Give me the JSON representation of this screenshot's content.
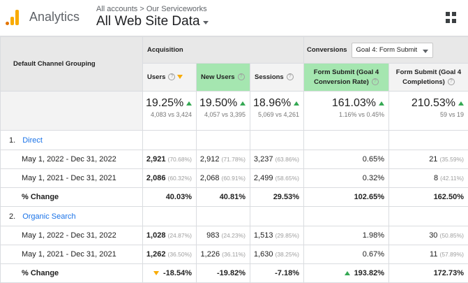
{
  "header": {
    "app_name": "Analytics",
    "breadcrumb_account": "All accounts",
    "breadcrumb_separator": ">",
    "breadcrumb_property": "Our Serviceworks",
    "view_name": "All Web Site Data",
    "logo_icon": "analytics-logo-icon",
    "apps_icon": "apps-grid-icon"
  },
  "colors": {
    "brand_orange": "#f9ab00",
    "green_highlight": "#a5e6b0",
    "up_arrow": "#34a853",
    "link": "#1a73e8"
  },
  "table": {
    "dimension_header": "Default Channel Grouping",
    "group_acquisition": "Acquisition",
    "group_conversions": "Conversions",
    "goal_selector": "Goal 4: Form Submit",
    "columns": {
      "users": "Users",
      "new_users": "New Users",
      "sessions": "Sessions",
      "conv_rate": "Form Submit (Goal 4 Conversion Rate)",
      "completions": "Form Submit (Goal 4 Completions)"
    },
    "summary": {
      "users": {
        "change": "19.25%",
        "compare": "4,083 vs 3,424"
      },
      "new_users": {
        "change": "19.50%",
        "compare": "4,057 vs 3,395"
      },
      "sessions": {
        "change": "18.96%",
        "compare": "5,069 vs 4,261"
      },
      "conv_rate": {
        "change": "161.03%",
        "compare": "1.16% vs 0.45%"
      },
      "completions": {
        "change": "210.53%",
        "compare": "59 vs 19"
      }
    },
    "groups": [
      {
        "num": "1.",
        "name": "Direct",
        "rows": [
          {
            "label": "May 1, 2022 - Dec 31, 2022",
            "users": "2,921",
            "users_pct": "(70.68%)",
            "new_users": "2,912",
            "new_users_pct": "(71.78%)",
            "sessions": "3,237",
            "sessions_pct": "(63.86%)",
            "conv_rate": "0.65%",
            "completions": "21",
            "completions_pct": "(35.59%)"
          },
          {
            "label": "May 1, 2021 - Dec 31, 2021",
            "users": "2,086",
            "users_pct": "(60.32%)",
            "new_users": "2,068",
            "new_users_pct": "(60.91%)",
            "sessions": "2,499",
            "sessions_pct": "(58.65%)",
            "conv_rate": "0.32%",
            "completions": "8",
            "completions_pct": "(42.11%)"
          }
        ],
        "change": {
          "label": "% Change",
          "users": "40.03%",
          "new_users": "40.81%",
          "sessions": "29.53%",
          "conv_rate": "102.65%",
          "completions": "162.50%"
        }
      },
      {
        "num": "2.",
        "name": "Organic Search",
        "rows": [
          {
            "label": "May 1, 2022 - Dec 31, 2022",
            "users": "1,028",
            "users_pct": "(24.87%)",
            "new_users": "983",
            "new_users_pct": "(24.23%)",
            "sessions": "1,513",
            "sessions_pct": "(29.85%)",
            "conv_rate": "1.98%",
            "completions": "30",
            "completions_pct": "(50.85%)"
          },
          {
            "label": "May 1, 2021 - Dec 31, 2021",
            "users": "1,262",
            "users_pct": "(36.50%)",
            "new_users": "1,226",
            "new_users_pct": "(36.11%)",
            "sessions": "1,630",
            "sessions_pct": "(38.25%)",
            "conv_rate": "0.67%",
            "completions": "11",
            "completions_pct": "(57.89%)"
          }
        ],
        "change": {
          "label": "% Change",
          "users": "-18.54%",
          "new_users": "-19.82%",
          "sessions": "-7.18%",
          "conv_rate": "193.82%",
          "completions": "172.73%"
        }
      }
    ]
  }
}
